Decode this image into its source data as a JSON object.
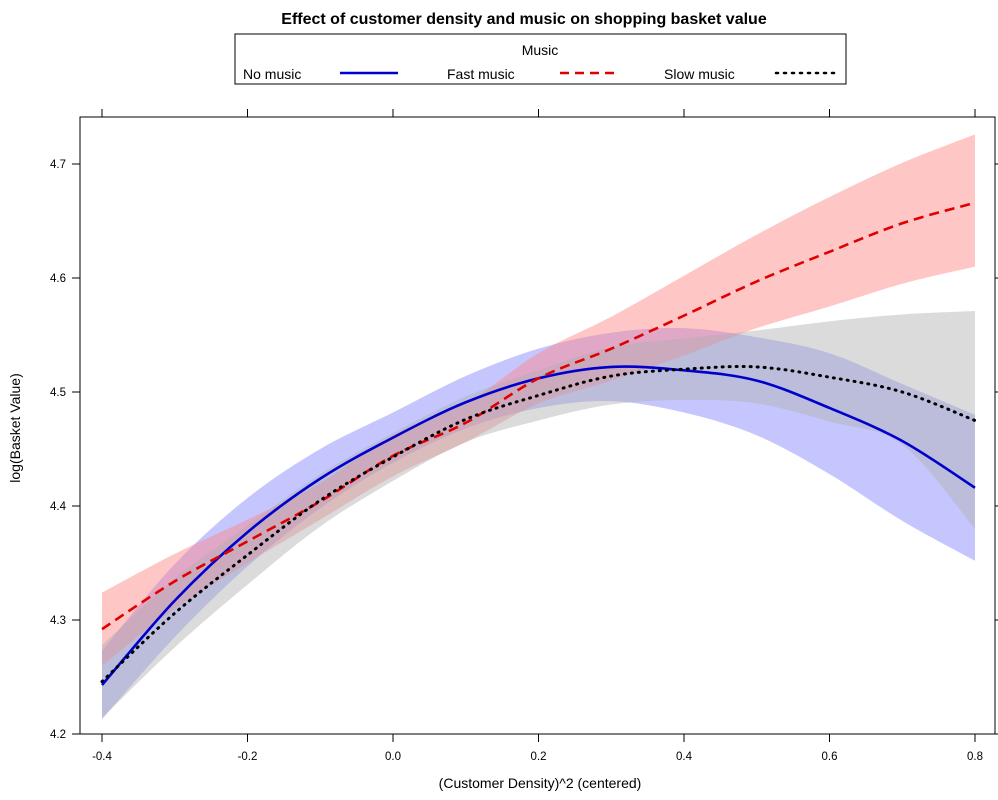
{
  "chart_data": {
    "type": "line",
    "title": "Effect of customer density and music on shopping basket value",
    "legend": {
      "title": "Music",
      "placement": "top",
      "entries": [
        "No music",
        "Fast music",
        "Slow music"
      ]
    },
    "xlabel": "(Customer Density)^2 (centered)",
    "ylabel": "log(Basket Value)",
    "xlim": [
      -0.4,
      0.8
    ],
    "ylim": [
      4.2,
      4.7
    ],
    "xticks": [
      "-0.4",
      "-0.2",
      "0.0",
      "0.2",
      "0.4",
      "0.6",
      "0.8"
    ],
    "yticks": [
      "4.2",
      "4.3",
      "4.4",
      "4.5",
      "4.6",
      "4.7"
    ],
    "grid": false,
    "series": [
      {
        "name": "No music",
        "color": "#0000cc",
        "band_color": "#8080ff",
        "style": "solid",
        "x": [
          -0.4,
          -0.3,
          -0.2,
          -0.1,
          0.0,
          0.1,
          0.2,
          0.3,
          0.4,
          0.5,
          0.6,
          0.7,
          0.8
        ],
        "y": [
          4.243,
          4.317,
          4.377,
          4.424,
          4.46,
          4.491,
          4.512,
          4.522,
          4.519,
          4.51,
          4.486,
          4.457,
          4.416
        ],
        "lower": [
          4.213,
          4.285,
          4.347,
          4.398,
          4.438,
          4.468,
          4.486,
          4.492,
          4.482,
          4.462,
          4.428,
          4.387,
          4.352
        ],
        "upper": [
          4.273,
          4.349,
          4.407,
          4.45,
          4.482,
          4.514,
          4.538,
          4.552,
          4.556,
          4.548,
          4.534,
          4.507,
          4.48
        ]
      },
      {
        "name": "Fast music",
        "color": "#e00000",
        "band_color": "#ff8080",
        "style": "dashed",
        "x": [
          -0.4,
          -0.3,
          -0.2,
          -0.1,
          0.0,
          0.1,
          0.2,
          0.3,
          0.4,
          0.5,
          0.6,
          0.7,
          0.8
        ],
        "y": [
          4.292,
          4.334,
          4.369,
          4.404,
          4.444,
          4.473,
          4.512,
          4.538,
          4.567,
          4.597,
          4.623,
          4.648,
          4.666
        ],
        "lower": [
          4.26,
          4.31,
          4.35,
          4.388,
          4.426,
          4.456,
          4.49,
          4.51,
          4.532,
          4.556,
          4.575,
          4.595,
          4.61
        ],
        "upper": [
          4.324,
          4.358,
          4.388,
          4.42,
          4.462,
          4.49,
          4.534,
          4.566,
          4.602,
          4.638,
          4.671,
          4.701,
          4.726
        ]
      },
      {
        "name": "Slow music",
        "color": "#000000",
        "band_color": "#b0b0b0",
        "style": "dotted",
        "x": [
          -0.4,
          -0.3,
          -0.2,
          -0.1,
          0.0,
          0.1,
          0.2,
          0.3,
          0.4,
          0.5,
          0.6,
          0.7,
          0.8
        ],
        "y": [
          4.246,
          4.306,
          4.357,
          4.405,
          4.443,
          4.476,
          4.497,
          4.514,
          4.52,
          4.522,
          4.513,
          4.5,
          4.475
        ],
        "lower": [
          4.214,
          4.276,
          4.331,
          4.382,
          4.422,
          4.456,
          4.475,
          4.489,
          4.493,
          4.49,
          4.474,
          4.454,
          4.38
        ],
        "upper": [
          4.278,
          4.336,
          4.383,
          4.428,
          4.464,
          4.496,
          4.519,
          4.539,
          4.547,
          4.554,
          4.562,
          4.568,
          4.571
        ]
      }
    ]
  }
}
